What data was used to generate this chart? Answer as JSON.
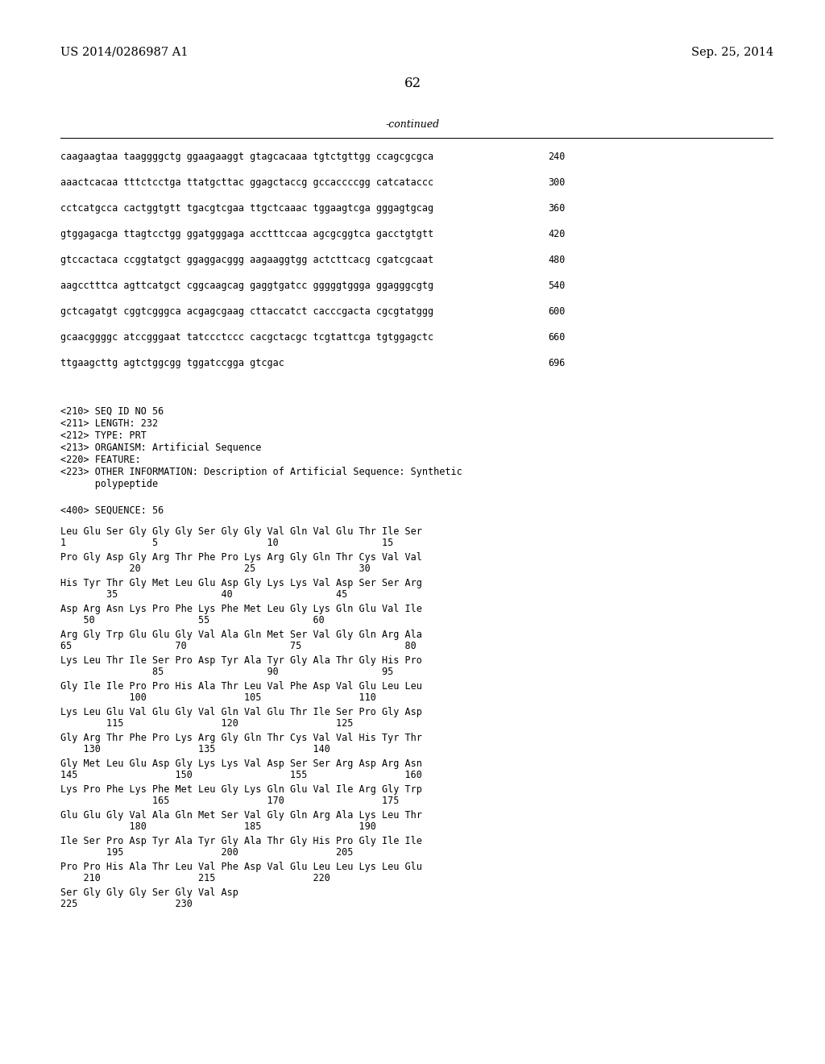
{
  "header_left": "US 2014/0286987 A1",
  "header_right": "Sep. 25, 2014",
  "page_number": "62",
  "continued_label": "-continued",
  "background_color": "#ffffff",
  "text_color": "#000000",
  "font_size_header": 10.5,
  "font_size_body": 8.5,
  "font_size_page": 12,
  "dna_lines": [
    [
      "caagaagtaa taaggggctg ggaagaaggt gtagcacaaa tgtctgttgg ccagcgcgca",
      "240"
    ],
    [
      "aaactcacaa tttctcctga ttatgcttac ggagctaccg gccaccccgg catcataccc",
      "300"
    ],
    [
      "cctcatgcca cactggtgtt tgacgtcgaa ttgctcaaac tggaagtcga gggagtgcag",
      "360"
    ],
    [
      "gtggagacga ttagtcctgg ggatgggaga acctttccaa agcgcggtca gacctgtgtt",
      "420"
    ],
    [
      "gtccactaca ccggtatgct ggaggacggg aagaaggtgg actcttcacg cgatcgcaat",
      "480"
    ],
    [
      "aagcctttca agttcatgct cggcaagcag gaggtgatcc gggggtggga ggagggcgtg",
      "540"
    ],
    [
      "gctcagatgt cggtcgggca acgagcgaag cttaccatct cacccgacta cgcgtatggg",
      "600"
    ],
    [
      "gcaacggggc atccgggaat tatccctccc cacgctacgc tcgtattcga tgtggagctc",
      "660"
    ],
    [
      "ttgaagcttg agtctggcgg tggatccgga gtcgac",
      "696"
    ]
  ],
  "seq_info_lines": [
    "<210> SEQ ID NO 56",
    "<211> LENGTH: 232",
    "<212> TYPE: PRT",
    "<213> ORGANISM: Artificial Sequence",
    "<220> FEATURE:",
    "<223> OTHER INFORMATION: Description of Artificial Sequence: Synthetic",
    "      polypeptide"
  ],
  "seq400_label": "<400> SEQUENCE: 56",
  "amino_lines": [
    {
      "residues": "Leu Glu Ser Gly Gly Gly Ser Gly Gly Val Gln Val Glu Thr Ile Ser",
      "numbers": "1               5                   10                  15"
    },
    {
      "residues": "Pro Gly Asp Gly Arg Thr Phe Pro Lys Arg Gly Gln Thr Cys Val Val",
      "numbers": "            20                  25                  30"
    },
    {
      "residues": "His Tyr Thr Gly Met Leu Glu Asp Gly Lys Lys Val Asp Ser Ser Arg",
      "numbers": "        35                  40                  45"
    },
    {
      "residues": "Asp Arg Asn Lys Pro Phe Lys Phe Met Leu Gly Lys Gln Glu Val Ile",
      "numbers": "    50                  55                  60"
    },
    {
      "residues": "Arg Gly Trp Glu Glu Gly Val Ala Gln Met Ser Val Gly Gln Arg Ala",
      "numbers": "65                  70                  75                  80"
    },
    {
      "residues": "Lys Leu Thr Ile Ser Pro Asp Tyr Ala Tyr Gly Ala Thr Gly His Pro",
      "numbers": "                85                  90                  95"
    },
    {
      "residues": "Gly Ile Ile Pro Pro His Ala Thr Leu Val Phe Asp Val Glu Leu Leu",
      "numbers": "            100                 105                 110"
    },
    {
      "residues": "Lys Leu Glu Val Glu Gly Val Gln Val Glu Thr Ile Ser Pro Gly Asp",
      "numbers": "        115                 120                 125"
    },
    {
      "residues": "Gly Arg Thr Phe Pro Lys Arg Gly Gln Thr Cys Val Val His Tyr Thr",
      "numbers": "    130                 135                 140"
    },
    {
      "residues": "Gly Met Leu Glu Asp Gly Lys Lys Val Asp Ser Ser Arg Asp Arg Asn",
      "numbers": "145                 150                 155                 160"
    },
    {
      "residues": "Lys Pro Phe Lys Phe Met Leu Gly Lys Gln Glu Val Ile Arg Gly Trp",
      "numbers": "                165                 170                 175"
    },
    {
      "residues": "Glu Glu Gly Val Ala Gln Met Ser Val Gly Gln Arg Ala Lys Leu Thr",
      "numbers": "            180                 185                 190"
    },
    {
      "residues": "Ile Ser Pro Asp Tyr Ala Tyr Gly Ala Thr Gly His Pro Gly Ile Ile",
      "numbers": "        195                 200                 205"
    },
    {
      "residues": "Pro Pro His Ala Thr Leu Val Phe Asp Val Glu Leu Leu Lys Leu Glu",
      "numbers": "    210                 215                 220"
    },
    {
      "residues": "Ser Gly Gly Gly Ser Gly Val Asp",
      "numbers": "225                 230"
    }
  ]
}
